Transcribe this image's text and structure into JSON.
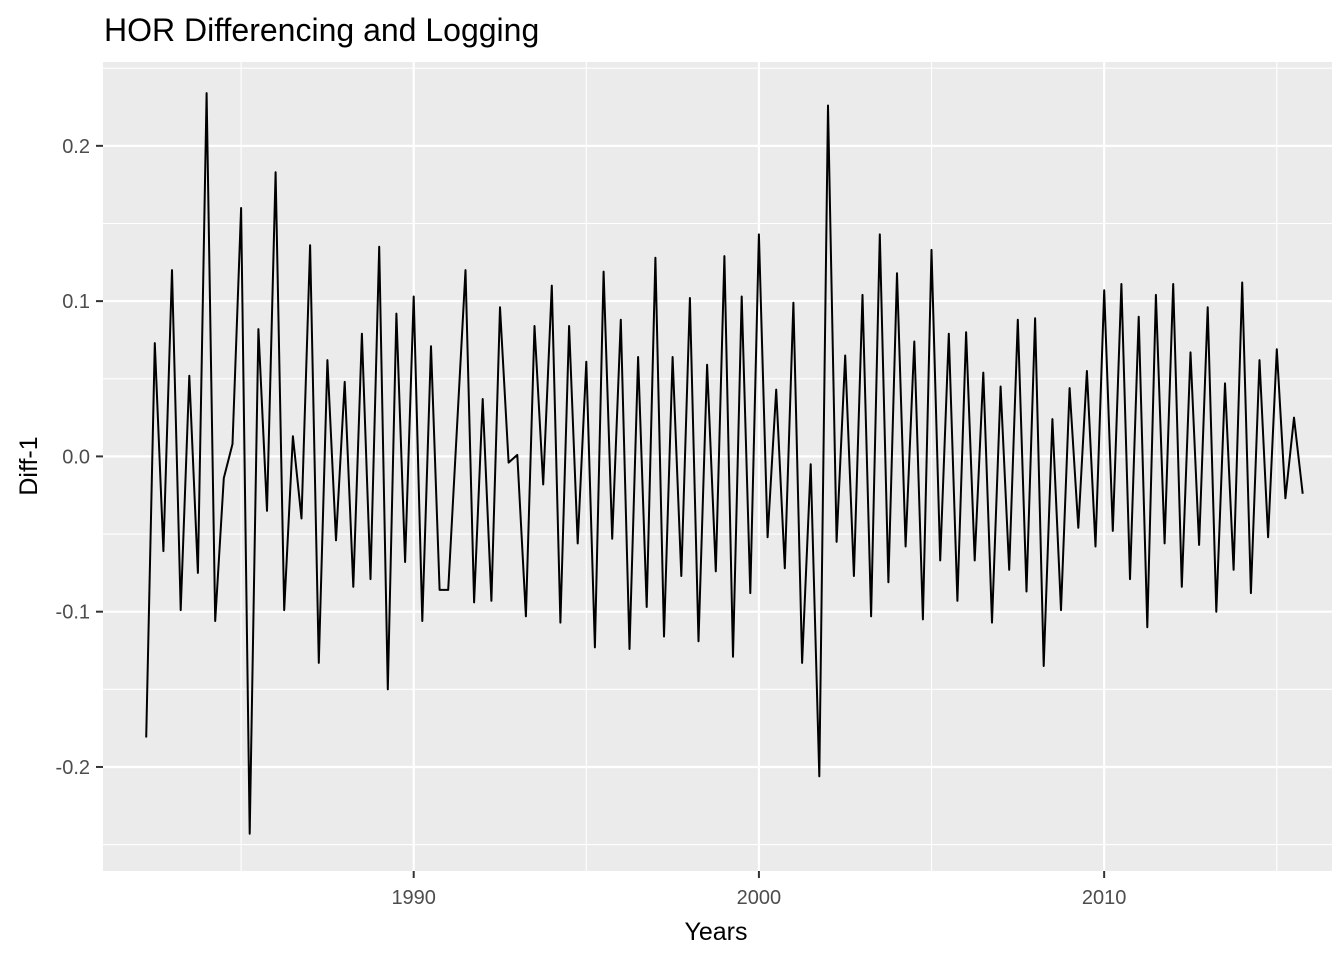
{
  "chart_data": {
    "type": "line",
    "title": "HOR Differencing and Logging",
    "xlabel": "Years",
    "ylabel": "Diff-1",
    "xlim": [
      1981.0,
      2016.6
    ],
    "ylim": [
      -0.267,
      0.254
    ],
    "x_ticks": [
      1990,
      2000,
      2010
    ],
    "x_tick_labels": [
      "1990",
      "2000",
      "2010"
    ],
    "y_ticks": [
      -0.2,
      -0.1,
      0.0,
      0.1,
      0.2
    ],
    "y_tick_labels": [
      "-0.2",
      "-0.1",
      "0.0",
      "0.1",
      "0.2"
    ],
    "grid": true,
    "legend": "none",
    "background_color": "#ebebeb",
    "line_color": "#000000",
    "series": [
      {
        "x": [
          1982.25,
          1982.5,
          1982.75,
          1983.0,
          1983.25,
          1983.5,
          1983.75,
          1984.0,
          1984.25,
          1984.5,
          1984.75,
          1985.0,
          1985.25,
          1985.5,
          1985.75,
          1986.0,
          1986.25,
          1986.5,
          1986.75,
          1987.0,
          1987.25,
          1987.5,
          1987.75,
          1988.0,
          1988.25,
          1988.5,
          1988.75,
          1989.0,
          1989.25,
          1989.5,
          1989.75,
          1990.0,
          1990.25,
          1990.5,
          1990.75,
          1991.0,
          1991.5,
          1991.75,
          1992.0,
          1992.25,
          1992.5,
          1992.75,
          1993.0,
          1993.25,
          1993.5,
          1993.75,
          1994.0,
          1994.25,
          1994.5,
          1994.75,
          1995.0,
          1995.25,
          1995.5,
          1995.75,
          1996.0,
          1996.25,
          1996.5,
          1996.75,
          1997.0,
          1997.25,
          1997.5,
          1997.75,
          1998.0,
          1998.25,
          1998.5,
          1998.75,
          1999.0,
          1999.25,
          1999.5,
          1999.75,
          2000.0,
          2000.25,
          2000.5,
          2000.75,
          2001.0,
          2001.25,
          2001.5,
          2001.75,
          2002.0,
          2002.25,
          2002.5,
          2002.75,
          2003.0,
          2003.25,
          2003.5,
          2003.75,
          2004.0,
          2004.25,
          2004.5,
          2004.75,
          2005.0,
          2005.25,
          2005.5,
          2005.75,
          2006.0,
          2006.25,
          2006.5,
          2006.75,
          2007.0,
          2007.25,
          2007.5,
          2007.75,
          2008.0,
          2008.25,
          2008.5,
          2008.75,
          2009.0,
          2009.25,
          2009.5,
          2009.75,
          2010.0,
          2010.25,
          2010.5,
          2010.75,
          2011.0,
          2011.25,
          2011.5,
          2011.75,
          2012.0,
          2012.25,
          2012.5,
          2012.75,
          2013.0,
          2013.25,
          2013.5,
          2013.75,
          2014.0,
          2014.25,
          2014.5,
          2014.75,
          2015.0,
          2015.25,
          2015.5,
          2015.75
        ],
        "y": [
          -0.181,
          0.073,
          -0.061,
          0.12,
          -0.099,
          0.052,
          -0.075,
          0.234,
          -0.106,
          -0.014,
          0.008,
          0.16,
          -0.243,
          0.082,
          -0.035,
          0.183,
          -0.099,
          0.013,
          -0.04,
          0.136,
          -0.133,
          0.062,
          -0.054,
          0.048,
          -0.084,
          0.079,
          -0.079,
          0.135,
          -0.15,
          0.092,
          -0.068,
          0.103,
          -0.106,
          0.071,
          -0.086,
          -0.086,
          0.12,
          -0.094,
          0.037,
          -0.093,
          0.096,
          -0.004,
          0.001,
          -0.103,
          0.084,
          -0.018,
          0.11,
          -0.107,
          0.084,
          -0.056,
          0.061,
          -0.123,
          0.119,
          -0.053,
          0.088,
          -0.124,
          0.064,
          -0.097,
          0.128,
          -0.116,
          0.064,
          -0.077,
          0.102,
          -0.119,
          0.059,
          -0.074,
          0.129,
          -0.129,
          0.103,
          -0.088,
          0.143,
          -0.052,
          0.043,
          -0.072,
          0.099,
          -0.133,
          -0.005,
          -0.206,
          0.226,
          -0.055,
          0.065,
          -0.077,
          0.104,
          -0.103,
          0.143,
          -0.081,
          0.118,
          -0.058,
          0.074,
          -0.105,
          0.133,
          -0.067,
          0.079,
          -0.093,
          0.08,
          -0.067,
          0.054,
          -0.107,
          0.045,
          -0.073,
          0.088,
          -0.087,
          0.089,
          -0.135,
          0.024,
          -0.099,
          0.044,
          -0.046,
          0.055,
          -0.058,
          0.107,
          -0.048,
          0.111,
          -0.079,
          0.09,
          -0.11,
          0.104,
          -0.056,
          0.111,
          -0.084,
          0.067,
          -0.057,
          0.096,
          -0.1,
          0.047,
          -0.073,
          0.112,
          -0.088,
          0.062,
          -0.052,
          0.069,
          -0.027,
          0.025,
          -0.024
        ]
      }
    ]
  }
}
